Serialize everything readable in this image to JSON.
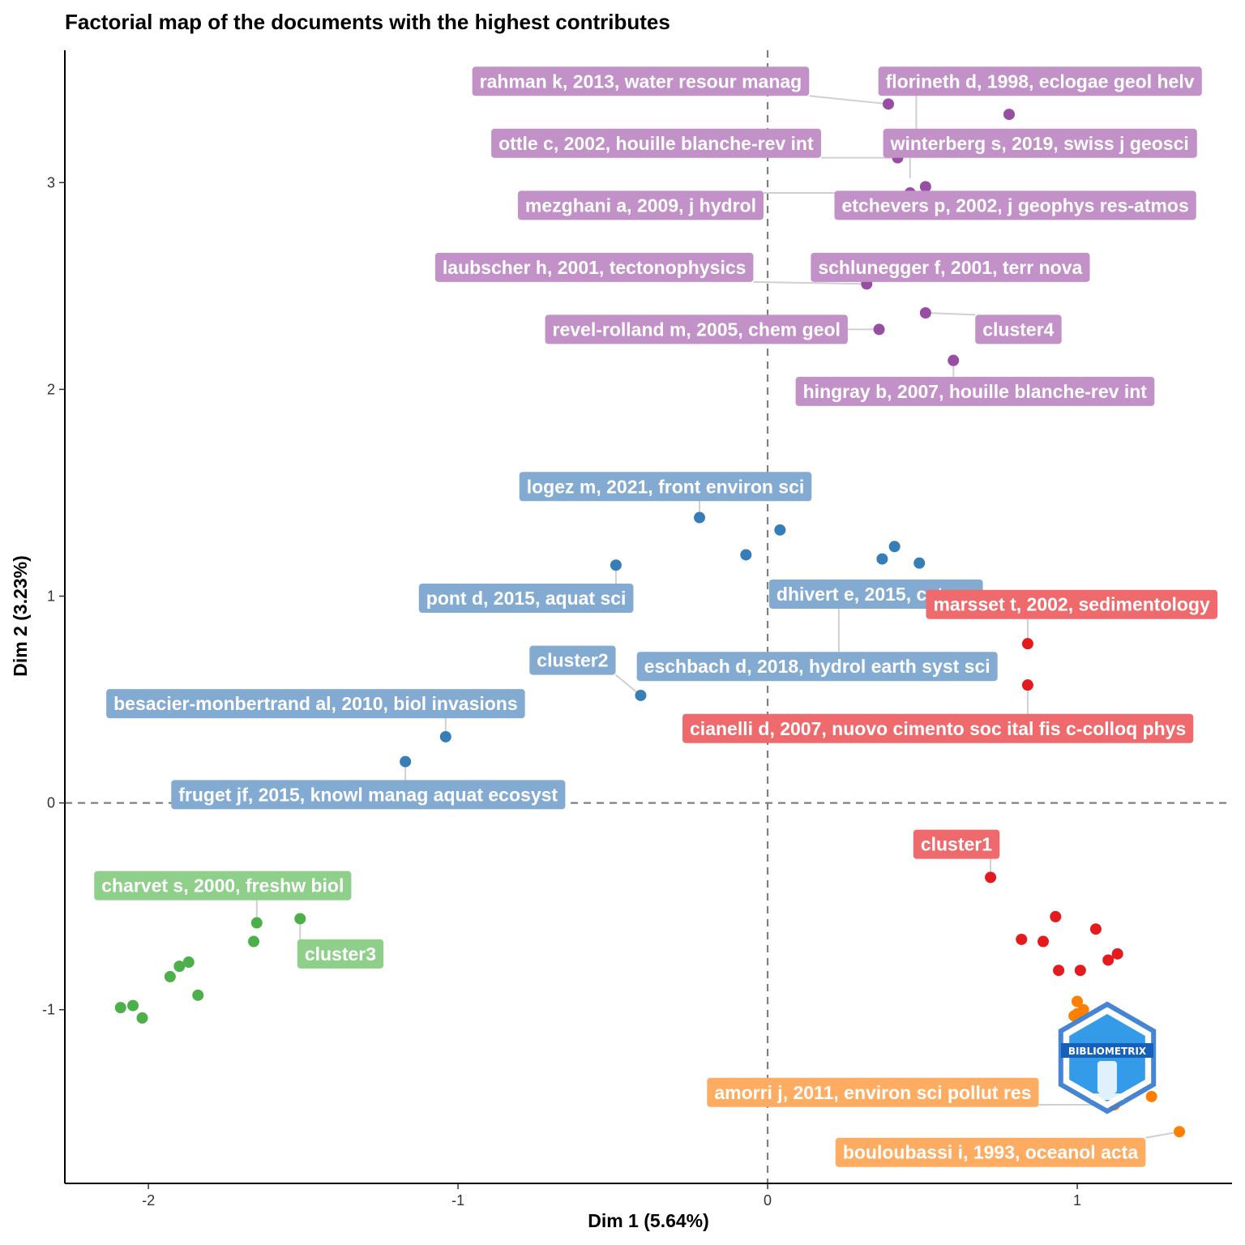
{
  "chart_data": {
    "type": "scatter",
    "title": "Factorial map of the documents with the highest contributes",
    "xlabel": "Dim 1 (5.64%)",
    "ylabel": "Dim 2 (3.23%)",
    "xlim": [
      -2.27,
      1.5
    ],
    "ylim": [
      -1.84,
      3.64
    ],
    "x_ticks": [
      -2,
      -1,
      0,
      1
    ],
    "y_ticks": [
      -1,
      0,
      1,
      2,
      3
    ],
    "reference_lines": {
      "x": 0,
      "y": 0
    },
    "grid": false,
    "legend": "none",
    "series": [
      {
        "color": "#984EA3",
        "label_color": "#C291C8",
        "points": [
          [
            0.39,
            3.38
          ],
          [
            0.78,
            3.33
          ],
          [
            0.42,
            3.12
          ],
          [
            0.51,
            2.98
          ],
          [
            0.46,
            2.95
          ],
          [
            0.32,
            2.51
          ],
          [
            0.51,
            2.37
          ],
          [
            0.36,
            2.29
          ],
          [
            0.6,
            2.14
          ]
        ],
        "labels": [
          {
            "text": "rahman k, 2013, water resour manag",
            "x": -0.41,
            "y": 3.49,
            "ax": 0.39,
            "ay": 3.38
          },
          {
            "text": "florineth d, 1998, eclogae geol helv",
            "x": 0.88,
            "y": 3.49,
            "ax": 0.48,
            "ay": 3.25
          },
          {
            "text": "ottle c, 2002, houille blanche-rev int",
            "x": -0.36,
            "y": 3.19,
            "ax": 0.42,
            "ay": 3.12
          },
          {
            "text": "winterberg s, 2019, swiss j geosci",
            "x": 0.88,
            "y": 3.19,
            "ax": 0.46,
            "ay": 3.02
          },
          {
            "text": "mezghani a, 2009, j hydrol",
            "x": -0.41,
            "y": 2.89,
            "ax": 0.46,
            "ay": 2.95
          },
          {
            "text": "etchevers p, 2002, j geophys res-atmos",
            "x": 0.8,
            "y": 2.89,
            "ax": 0.51,
            "ay": 2.98
          },
          {
            "text": "laubscher h, 2001, tectonophysics",
            "x": -0.56,
            "y": 2.59,
            "ax": 0.32,
            "ay": 2.51
          },
          {
            "text": "schlunegger f, 2001, terr nova",
            "x": 0.59,
            "y": 2.59,
            "ax": 0.4,
            "ay": 2.55
          },
          {
            "text": "revel-rolland m, 2005, chem geol",
            "x": -0.23,
            "y": 2.29,
            "ax": 0.36,
            "ay": 2.29
          },
          {
            "text": "cluster4",
            "x": 0.81,
            "y": 2.29,
            "ax": 0.51,
            "ay": 2.37
          },
          {
            "text": "hingray b, 2007, houille blanche-rev int",
            "x": 0.67,
            "y": 1.99,
            "ax": 0.6,
            "ay": 2.14
          }
        ]
      },
      {
        "color": "#377EB8",
        "label_color": "#83AAD1",
        "points": [
          [
            -0.22,
            1.38
          ],
          [
            0.04,
            1.32
          ],
          [
            0.41,
            1.24
          ],
          [
            -0.07,
            1.2
          ],
          [
            0.37,
            1.18
          ],
          [
            0.49,
            1.16
          ],
          [
            -0.49,
            1.15
          ],
          [
            0.23,
            0.97
          ],
          [
            -0.41,
            0.52
          ],
          [
            -1.04,
            0.32
          ],
          [
            -1.17,
            0.2
          ]
        ],
        "labels": [
          {
            "text": "logez m, 2021, front environ sci",
            "x": -0.33,
            "y": 1.53,
            "ax": -0.22,
            "ay": 1.38
          },
          {
            "text": "pont d, 2015, aquat sci",
            "x": -0.78,
            "y": 0.99,
            "ax": -0.49,
            "ay": 1.15
          },
          {
            "text": "dhivert e, 2015, catena",
            "x": 0.35,
            "y": 1.01,
            "ax": 0.23,
            "ay": 0.97
          },
          {
            "text": "cluster2",
            "x": -0.63,
            "y": 0.69,
            "ax": -0.41,
            "ay": 0.52
          },
          {
            "text": "eschbach d, 2018, hydrol earth syst sci",
            "x": 0.16,
            "y": 0.66,
            "ax": 0.23,
            "ay": 0.97
          },
          {
            "text": "besacier-monbertrand al, 2010, biol invasions",
            "x": -1.46,
            "y": 0.48,
            "ax": -1.04,
            "ay": 0.32
          },
          {
            "text": "fruget jf, 2015, knowl manag aquat ecosyst",
            "x": -1.29,
            "y": 0.04,
            "ax": -1.17,
            "ay": 0.2
          }
        ]
      },
      {
        "color": "#E41A1C",
        "label_color": "#EE6A6C",
        "points": [
          [
            0.84,
            0.77
          ],
          [
            0.84,
            0.57
          ],
          [
            0.72,
            -0.36
          ],
          [
            0.93,
            -0.55
          ],
          [
            1.06,
            -0.61
          ],
          [
            0.82,
            -0.66
          ],
          [
            0.89,
            -0.67
          ],
          [
            1.13,
            -0.73
          ],
          [
            1.1,
            -0.76
          ],
          [
            0.94,
            -0.81
          ],
          [
            1.01,
            -0.81
          ]
        ],
        "labels": [
          {
            "text": "marsset t, 2002, sedimentology",
            "x": 1.17,
            "y": 0.96,
            "ax": 0.84,
            "ay": 0.77
          },
          {
            "text": "cianelli d, 2007, nuovo cimento soc ital fis c-colloq phys",
            "x": 0.55,
            "y": 0.36,
            "ax": 0.84,
            "ay": 0.57
          },
          {
            "text": "cluster1",
            "x": 0.61,
            "y": -0.2,
            "ax": 0.72,
            "ay": -0.36
          }
        ]
      },
      {
        "color": "#4DAF4A",
        "label_color": "#8ECF8A",
        "points": [
          [
            -1.65,
            -0.58
          ],
          [
            -1.51,
            -0.56
          ],
          [
            -1.66,
            -0.67
          ],
          [
            -1.87,
            -0.77
          ],
          [
            -1.9,
            -0.79
          ],
          [
            -1.93,
            -0.84
          ],
          [
            -1.84,
            -0.93
          ],
          [
            -2.09,
            -0.99
          ],
          [
            -2.05,
            -0.98
          ],
          [
            -2.02,
            -1.04
          ]
        ],
        "labels": [
          {
            "text": "charvet s, 2000, freshw biol",
            "x": -1.76,
            "y": -0.4,
            "ax": -1.65,
            "ay": -0.58
          },
          {
            "text": "cluster3",
            "x": -1.38,
            "y": -0.73,
            "ax": -1.51,
            "ay": -0.56
          }
        ]
      },
      {
        "color": "#FF7F00",
        "label_color": "#FDAC61",
        "points": [
          [
            1.0,
            -0.96
          ],
          [
            1.02,
            -1.0
          ],
          [
            0.99,
            -1.03
          ],
          [
            1.0,
            -1.02
          ],
          [
            1.05,
            -1.12
          ],
          [
            1.1,
            -1.18
          ],
          [
            0.98,
            -1.29
          ],
          [
            1.22,
            -1.33
          ],
          [
            1.24,
            -1.42
          ],
          [
            1.12,
            -1.46
          ],
          [
            1.33,
            -1.59
          ]
        ],
        "labels": [
          {
            "text": "amorri j, 2011, environ sci pollut res",
            "x": 0.34,
            "y": -1.4,
            "ax": 1.12,
            "ay": -1.46
          },
          {
            "text": "bouloubassi i, 1993, oceanol acta",
            "x": 0.72,
            "y": -1.69,
            "ax": 1.33,
            "ay": -1.59
          }
        ]
      }
    ]
  },
  "watermark": {
    "text": "BIBLIOMETRIX",
    "icon": "bibliometrix-logo"
  }
}
